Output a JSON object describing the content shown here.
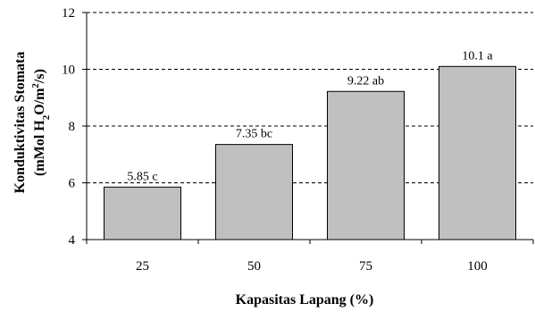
{
  "chart_data": {
    "type": "bar",
    "categories": [
      "25",
      "50",
      "75",
      "100"
    ],
    "values": [
      5.85,
      7.35,
      9.22,
      10.1
    ],
    "data_labels": [
      "5.85 c",
      "7.35 bc",
      "9.22 ab",
      "10.1 a"
    ],
    "xlabel": "Kapasitas Lapang (%)",
    "ylabel": {
      "line1": "Konduktivitas Stomata",
      "line2_parts": [
        "(mMol H",
        "2",
        "O/m",
        "2",
        "/s)"
      ]
    },
    "ylim": [
      4,
      12
    ],
    "yticks": [
      4,
      6,
      8,
      10,
      12
    ],
    "grid": "dashed horizontal",
    "bar_color": "#c0c0c0",
    "bar_edge_color": "#000000"
  }
}
